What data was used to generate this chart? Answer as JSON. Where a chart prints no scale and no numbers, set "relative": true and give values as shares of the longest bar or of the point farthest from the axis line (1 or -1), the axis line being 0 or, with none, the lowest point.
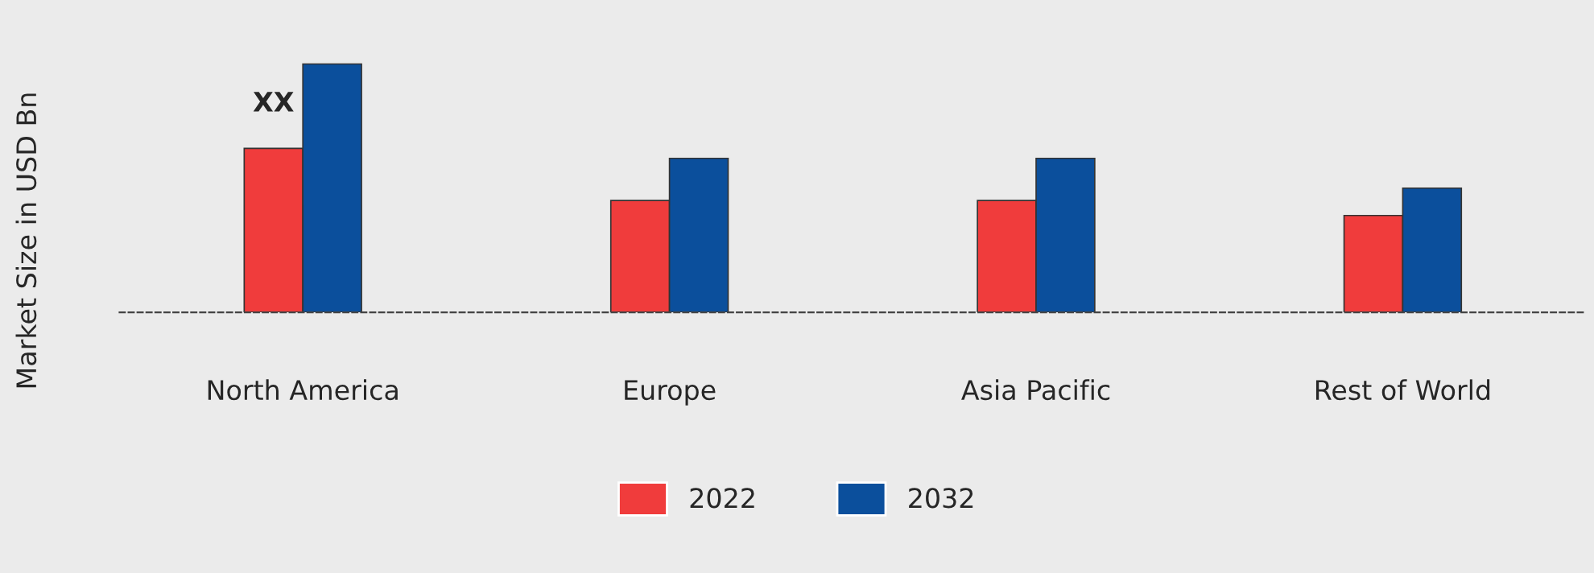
{
  "chart_data": {
    "type": "bar",
    "ylabel": "Market Size in USD Bn",
    "categories": [
      "North America",
      "Europe",
      "Asia Pacific",
      "Rest of World"
    ],
    "relative": true,
    "series": [
      {
        "name": "2022",
        "color": "#f03c3c",
        "values": [
          0.66,
          0.45,
          0.45,
          0.39
        ]
      },
      {
        "name": "2032",
        "color": "#0b4f9c",
        "values": [
          1,
          0.62,
          0.62,
          0.5
        ]
      }
    ],
    "annotations": [
      {
        "text": "XX",
        "x": "North America",
        "y": 0.66
      }
    ],
    "legend": "bottom",
    "grid": false
  }
}
